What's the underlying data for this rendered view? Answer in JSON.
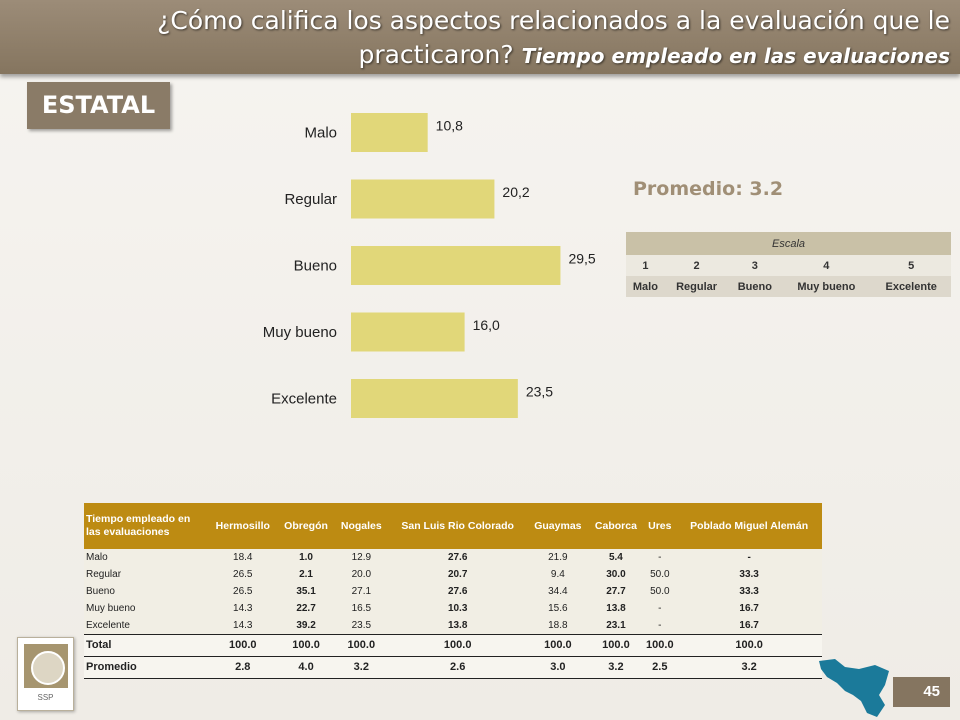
{
  "header": {
    "title": "¿Cómo califica los aspectos relacionados a la evaluación que le practicaron?",
    "subtitle": "Tiempo empleado en las evaluaciones"
  },
  "badge": "ESTATAL",
  "chart_data": {
    "type": "bar",
    "orientation": "horizontal",
    "categories": [
      "Malo",
      "Regular",
      "Bueno",
      "Muy bueno",
      "Excelente"
    ],
    "values": [
      10.8,
      20.2,
      29.5,
      16.0,
      23.5
    ],
    "data_labels": [
      "10,8",
      "20,2",
      "29,5",
      "16,0",
      "23,5"
    ],
    "title": "",
    "xlabel": "",
    "ylabel": "",
    "grid": false,
    "bar_color": "#e1d779"
  },
  "promedio": "Promedio: 3.2",
  "escala": {
    "title": "Escala",
    "numbers": [
      "1",
      "2",
      "3",
      "4",
      "5"
    ],
    "labels": [
      "Malo",
      "Regular",
      "Bueno",
      "Muy bueno",
      "Excelente"
    ]
  },
  "table": {
    "headers": [
      "Tiempo empleado en las evaluaciones",
      "Hermosillo",
      "Obregón",
      "Nogales",
      "San Luis Rio Colorado",
      "Guaymas",
      "Caborca",
      "Ures",
      "Poblado Miguel Alemán"
    ],
    "rows": [
      {
        "label": "Malo",
        "values": [
          "18.4",
          "1.0",
          "12.9",
          "27.6",
          "21.9",
          "5.4",
          "-",
          "-"
        ]
      },
      {
        "label": "Regular",
        "values": [
          "26.5",
          "2.1",
          "20.0",
          "20.7",
          "9.4",
          "30.0",
          "50.0",
          "33.3"
        ]
      },
      {
        "label": "Bueno",
        "values": [
          "26.5",
          "35.1",
          "27.1",
          "27.6",
          "34.4",
          "27.7",
          "50.0",
          "33.3"
        ]
      },
      {
        "label": "Muy bueno",
        "values": [
          "14.3",
          "22.7",
          "16.5",
          "10.3",
          "15.6",
          "13.8",
          "-",
          "16.7"
        ]
      },
      {
        "label": "Excelente",
        "values": [
          "14.3",
          "39.2",
          "23.5",
          "13.8",
          "18.8",
          "23.1",
          "-",
          "16.7"
        ]
      }
    ],
    "total": {
      "label": "Total",
      "values": [
        "100.0",
        "100.0",
        "100.0",
        "100.0",
        "100.0",
        "100.0",
        "100.0",
        "100.0"
      ]
    },
    "promedio": {
      "label": "Promedio",
      "values": [
        "2.8",
        "4.0",
        "3.2",
        "2.6",
        "3.0",
        "3.2",
        "2.5",
        "3.2"
      ]
    }
  },
  "logo_text": "SSP",
  "page_number": "45",
  "colors": {
    "header_band": "#8f7f6a",
    "table_header": "#bd8b12",
    "promedio_text": "#a08f76"
  }
}
